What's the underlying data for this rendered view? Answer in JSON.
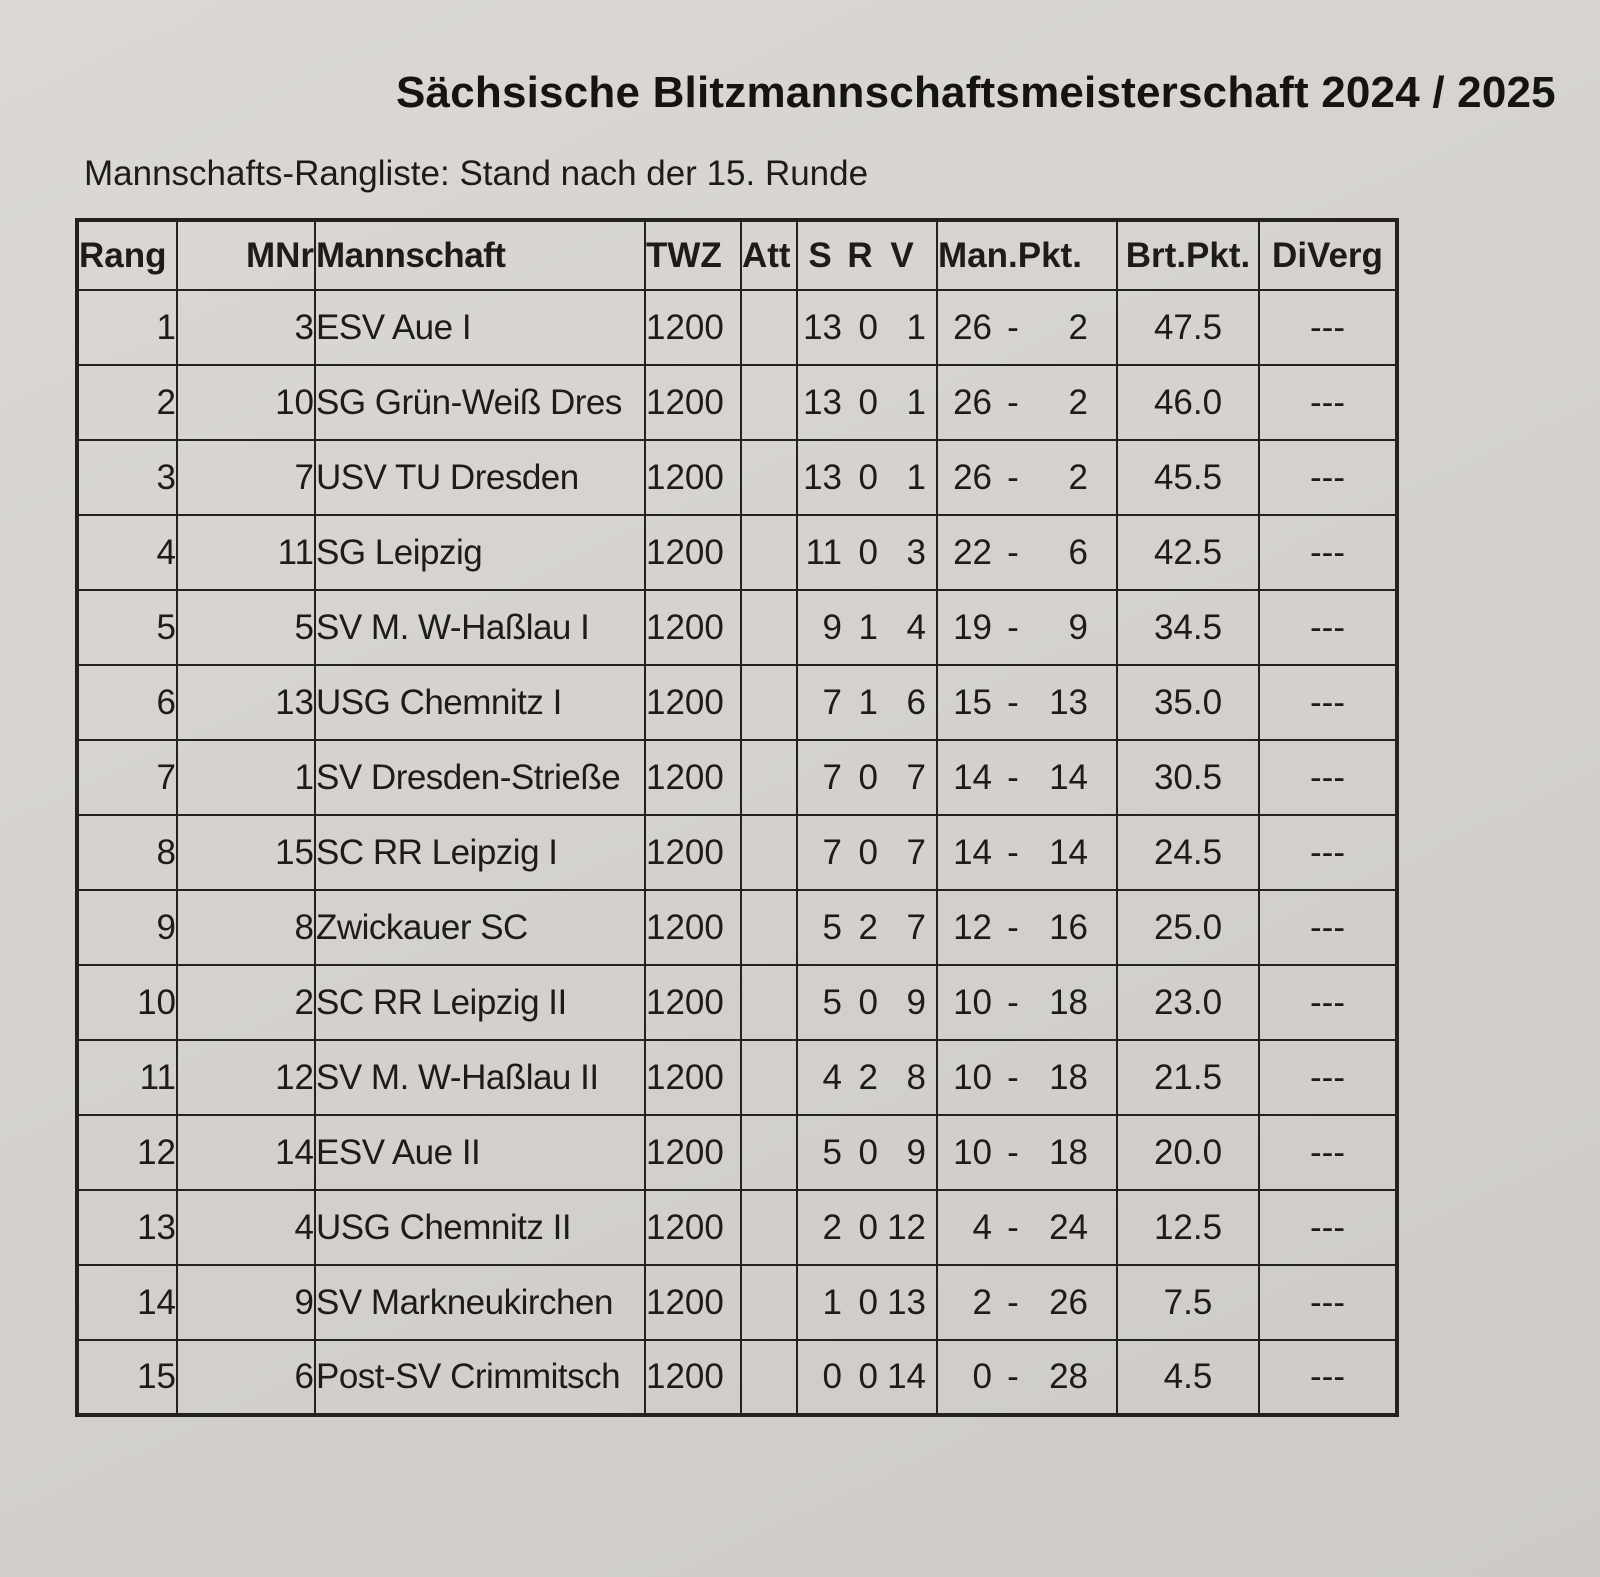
{
  "page": {
    "title": "Sächsische Blitzmannschaftsmeisterschaft 2024 / 2025",
    "subtitle": "Mannschafts-Rangliste: Stand nach der 15. Runde"
  },
  "table": {
    "mp_sep": "-",
    "header": {
      "rang": "Rang",
      "mnr": "MNr",
      "mannschaft": "Mannschaft",
      "twz": "TWZ",
      "att": "Att",
      "s": "S",
      "r": "R",
      "v": "V",
      "man_pkt": "Man.Pkt.",
      "brt_pkt": "Brt.Pkt.",
      "diverg": "DiVerg"
    },
    "rows": [
      {
        "rang": "1",
        "mnr": "3",
        "mannschaft": "ESV Aue I",
        "twz": "1200",
        "att": "",
        "s": "13",
        "r": "0",
        "v": "1",
        "mp_for": "26",
        "mp_against": "2",
        "brt": "47.5",
        "diverg": "---"
      },
      {
        "rang": "2",
        "mnr": "10",
        "mannschaft": "SG Grün-Weiß Dres",
        "twz": "1200",
        "att": "",
        "s": "13",
        "r": "0",
        "v": "1",
        "mp_for": "26",
        "mp_against": "2",
        "brt": "46.0",
        "diverg": "---"
      },
      {
        "rang": "3",
        "mnr": "7",
        "mannschaft": "USV TU Dresden",
        "twz": "1200",
        "att": "",
        "s": "13",
        "r": "0",
        "v": "1",
        "mp_for": "26",
        "mp_against": "2",
        "brt": "45.5",
        "diverg": "---"
      },
      {
        "rang": "4",
        "mnr": "11",
        "mannschaft": "SG Leipzig",
        "twz": "1200",
        "att": "",
        "s": "11",
        "r": "0",
        "v": "3",
        "mp_for": "22",
        "mp_against": "6",
        "brt": "42.5",
        "diverg": "---"
      },
      {
        "rang": "5",
        "mnr": "5",
        "mannschaft": "SV M. W-Haßlau I",
        "twz": "1200",
        "att": "",
        "s": "9",
        "r": "1",
        "v": "4",
        "mp_for": "19",
        "mp_against": "9",
        "brt": "34.5",
        "diverg": "---"
      },
      {
        "rang": "6",
        "mnr": "13",
        "mannschaft": "USG Chemnitz I",
        "twz": "1200",
        "att": "",
        "s": "7",
        "r": "1",
        "v": "6",
        "mp_for": "15",
        "mp_against": "13",
        "brt": "35.0",
        "diverg": "---"
      },
      {
        "rang": "7",
        "mnr": "1",
        "mannschaft": "SV Dresden-Strieße",
        "twz": "1200",
        "att": "",
        "s": "7",
        "r": "0",
        "v": "7",
        "mp_for": "14",
        "mp_against": "14",
        "brt": "30.5",
        "diverg": "---"
      },
      {
        "rang": "8",
        "mnr": "15",
        "mannschaft": "SC RR Leipzig I",
        "twz": "1200",
        "att": "",
        "s": "7",
        "r": "0",
        "v": "7",
        "mp_for": "14",
        "mp_against": "14",
        "brt": "24.5",
        "diverg": "---"
      },
      {
        "rang": "9",
        "mnr": "8",
        "mannschaft": "Zwickauer SC",
        "twz": "1200",
        "att": "",
        "s": "5",
        "r": "2",
        "v": "7",
        "mp_for": "12",
        "mp_against": "16",
        "brt": "25.0",
        "diverg": "---"
      },
      {
        "rang": "10",
        "mnr": "2",
        "mannschaft": "SC RR Leipzig II",
        "twz": "1200",
        "att": "",
        "s": "5",
        "r": "0",
        "v": "9",
        "mp_for": "10",
        "mp_against": "18",
        "brt": "23.0",
        "diverg": "---"
      },
      {
        "rang": "11",
        "mnr": "12",
        "mannschaft": "SV M. W-Haßlau II",
        "twz": "1200",
        "att": "",
        "s": "4",
        "r": "2",
        "v": "8",
        "mp_for": "10",
        "mp_against": "18",
        "brt": "21.5",
        "diverg": "---"
      },
      {
        "rang": "12",
        "mnr": "14",
        "mannschaft": "ESV Aue II",
        "twz": "1200",
        "att": "",
        "s": "5",
        "r": "0",
        "v": "9",
        "mp_for": "10",
        "mp_against": "18",
        "brt": "20.0",
        "diverg": "---"
      },
      {
        "rang": "13",
        "mnr": "4",
        "mannschaft": "USG Chemnitz II",
        "twz": "1200",
        "att": "",
        "s": "2",
        "r": "0",
        "v": "12",
        "mp_for": "4",
        "mp_against": "24",
        "brt": "12.5",
        "diverg": "---"
      },
      {
        "rang": "14",
        "mnr": "9",
        "mannschaft": "SV Markneukirchen",
        "twz": "1200",
        "att": "",
        "s": "1",
        "r": "0",
        "v": "13",
        "mp_for": "2",
        "mp_against": "26",
        "brt": "7.5",
        "diverg": "---"
      },
      {
        "rang": "15",
        "mnr": "6",
        "mannschaft": "Post-SV Crimmitsch",
        "twz": "1200",
        "att": "",
        "s": "0",
        "r": "0",
        "v": "14",
        "mp_for": "0",
        "mp_against": "28",
        "brt": "4.5",
        "diverg": "---"
      }
    ]
  }
}
